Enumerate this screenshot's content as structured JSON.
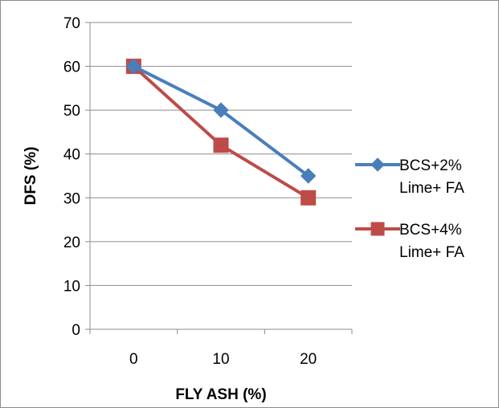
{
  "chart_data": {
    "type": "line",
    "title": "",
    "xlabel": "FLY ASH (%)",
    "ylabel": "DFS (%)",
    "categories": [
      "0",
      "10",
      "20"
    ],
    "ylim": [
      0,
      70
    ],
    "yticks": [
      "0",
      "10",
      "20",
      "30",
      "40",
      "50",
      "60",
      "70"
    ],
    "grid": true,
    "legend_position": "right",
    "series": [
      {
        "name": "BCS+2% Lime+ FA",
        "name_lines": [
          "BCS+2%",
          "Lime+ FA"
        ],
        "values": [
          60,
          50,
          35
        ],
        "color": "#4a7ebb",
        "marker": "diamond"
      },
      {
        "name": "BCS+4% Lime+ FA",
        "name_lines": [
          "BCS+4%",
          "Lime+ FA"
        ],
        "values": [
          60,
          42,
          30
        ],
        "color": "#be4b48",
        "marker": "square"
      }
    ]
  }
}
